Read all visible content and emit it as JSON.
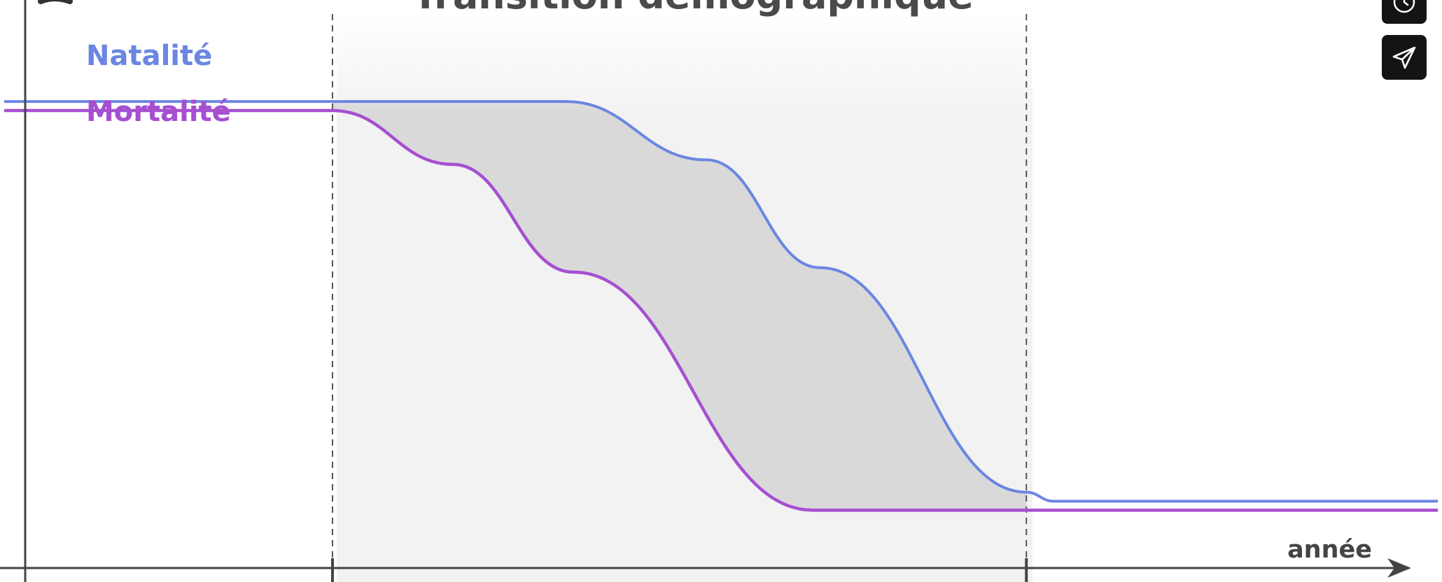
{
  "chart_data": {
    "type": "line",
    "title": "Transition démographique",
    "xlabel": "année",
    "ylabel": "",
    "series": [
      {
        "name": "Natalité",
        "color": "#6b86e2",
        "x": [
          0,
          22.9,
          39.2,
          49.0,
          56.9,
          71.3,
          73.2,
          100
        ],
        "y": [
          95,
          95,
          95,
          82,
          58,
          8,
          6,
          6
        ]
      },
      {
        "name": "Mortalité",
        "color": "#a64fd1",
        "x": [
          0,
          22.9,
          31.3,
          39.7,
          56.4,
          71.3,
          100
        ],
        "y": [
          93,
          93,
          81,
          57,
          4,
          4,
          4
        ]
      }
    ],
    "phase_boundaries": [
      22.9,
      71.3
    ],
    "transition_gap_shaded": true,
    "grid": false
  },
  "controls": {
    "replay_icon": "replay-icon",
    "share_icon": "send-icon"
  }
}
